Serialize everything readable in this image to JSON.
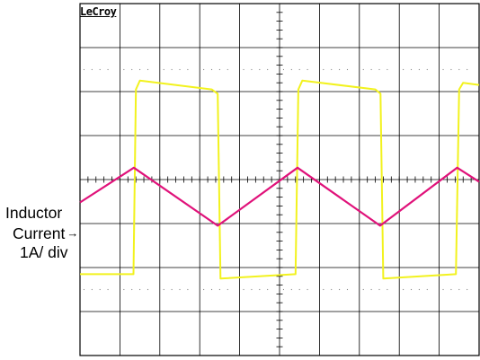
{
  "brand": "LeCroy",
  "annotation": {
    "line1": "Inductor",
    "line2": "Current",
    "arrow": "→",
    "line3": "1A/ div"
  },
  "colors": {
    "background": "#ffffff",
    "grid": "#000000",
    "switch_trace": "#f2f21e",
    "current_trace": "#e0127a"
  },
  "chart_data": {
    "type": "line",
    "title": "",
    "xlabel": "",
    "ylabel": "",
    "grid": true,
    "divisions": {
      "x": 10,
      "y": 8
    },
    "xlim": [
      0,
      10
    ],
    "ylim": [
      0,
      8
    ],
    "series": [
      {
        "trace": "switch",
        "x": [
          0,
          1.34,
          1.4,
          1.5,
          3.3,
          3.45,
          3.52,
          5.4,
          5.47,
          5.57,
          7.4,
          7.53,
          7.6,
          9.42,
          9.5,
          9.6,
          10
        ],
        "y": [
          1.85,
          1.85,
          6.05,
          6.25,
          6.05,
          5.95,
          1.75,
          1.85,
          6.05,
          6.25,
          6.05,
          5.95,
          1.75,
          1.85,
          6.05,
          6.2,
          6.15
        ]
      },
      {
        "trace": "inductor-current",
        "x": [
          0,
          1.35,
          3.45,
          5.45,
          7.52,
          9.45,
          10
        ],
        "y": [
          3.48,
          4.27,
          2.95,
          4.27,
          2.95,
          4.27,
          3.95
        ]
      }
    ]
  }
}
